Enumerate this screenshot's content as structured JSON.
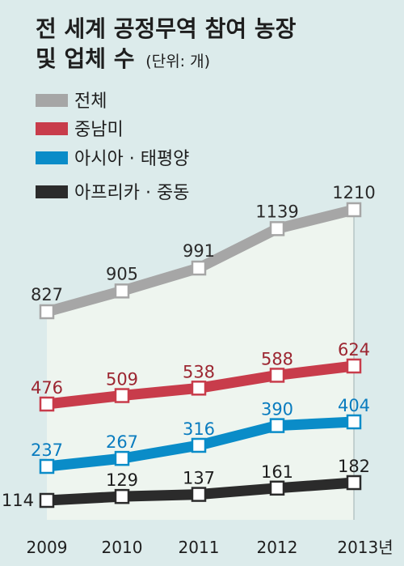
{
  "chart_data": {
    "type": "line",
    "title_line1": "전 세계 공정무역 참여 농장",
    "title_line2": "및 업체 수",
    "unit": "(단위: 개)",
    "categories": [
      "2009",
      "2010",
      "2011",
      "2012",
      "2013년"
    ],
    "series": [
      {
        "name": "전체",
        "color": "#a6a6a6",
        "label_color": "#2a2a2a",
        "values": [
          827,
          905,
          991,
          1139,
          1210
        ]
      },
      {
        "name": "중남미",
        "color": "#c83c4b",
        "label_color": "#9c2631",
        "values": [
          476,
          509,
          538,
          588,
          624
        ]
      },
      {
        "name": "아시아 · 태평양",
        "color": "#0a8cc8",
        "label_color": "#0a7cbf",
        "values": [
          237,
          267,
          316,
          390,
          404
        ]
      },
      {
        "name": "아프리카 · 중동",
        "color": "#2b2b2b",
        "label_color": "#1e1e1e",
        "values": [
          114,
          129,
          137,
          161,
          182
        ]
      }
    ],
    "colors": {
      "background": "#dcebeb",
      "area_fill": "#eef5ef",
      "title": "#1e1e1e"
    },
    "axis_scale": "broken",
    "grid": false,
    "legend_position": "top-left"
  }
}
